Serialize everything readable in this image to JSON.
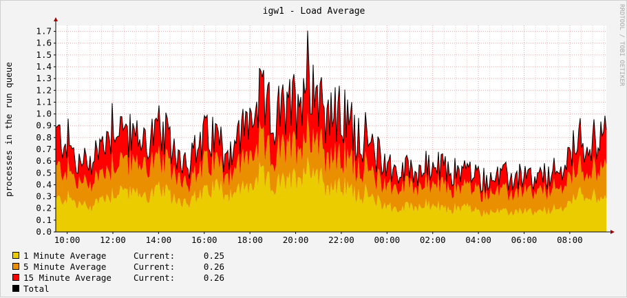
{
  "chart_data": {
    "type": "area",
    "title": "igw1 - Load Average",
    "ylabel": "processes in the run queue",
    "xlabel": "",
    "ylim": [
      0,
      1.75
    ],
    "yticks": [
      "0.0",
      "0.1",
      "0.2",
      "0.3",
      "0.4",
      "0.5",
      "0.6",
      "0.7",
      "0.8",
      "0.9",
      "1.0",
      "1.1",
      "1.2",
      "1.3",
      "1.4",
      "1.5",
      "1.6",
      "1.7"
    ],
    "xticks": [
      "10:00",
      "12:00",
      "14:00",
      "16:00",
      "18:00",
      "20:00",
      "22:00",
      "00:00",
      "02:00",
      "04:00",
      "06:00",
      "08:00"
    ],
    "x_range_hours": [
      9.5,
      33.6
    ],
    "grid": true,
    "watermark": "RRDTOOL / TOBI OETIKER",
    "x_hours": [
      9.5,
      10.0,
      10.5,
      11.0,
      11.5,
      12.0,
      12.5,
      13.0,
      13.5,
      14.0,
      14.5,
      15.0,
      15.5,
      16.0,
      16.5,
      17.0,
      17.5,
      18.0,
      18.5,
      19.0,
      19.5,
      20.0,
      20.5,
      21.0,
      21.5,
      22.0,
      22.5,
      23.0,
      23.5,
      24.0,
      24.5,
      25.0,
      25.5,
      26.0,
      26.5,
      27.0,
      27.5,
      28.0,
      28.5,
      29.0,
      29.5,
      30.0,
      30.5,
      31.0,
      31.5,
      32.0,
      32.5,
      33.0,
      33.6
    ],
    "series": [
      {
        "name": "1 Minute Average",
        "color": "#eacc00",
        "stack": true,
        "values": [
          0.25,
          0.28,
          0.22,
          0.2,
          0.27,
          0.31,
          0.35,
          0.29,
          0.3,
          0.33,
          0.29,
          0.25,
          0.26,
          0.31,
          0.38,
          0.31,
          0.33,
          0.37,
          0.45,
          0.36,
          0.4,
          0.43,
          0.54,
          0.48,
          0.34,
          0.37,
          0.33,
          0.31,
          0.25,
          0.22,
          0.17,
          0.22,
          0.2,
          0.22,
          0.18,
          0.19,
          0.21,
          0.15,
          0.17,
          0.15,
          0.16,
          0.17,
          0.15,
          0.17,
          0.18,
          0.23,
          0.32,
          0.3,
          0.25
        ]
      },
      {
        "name": "5 Minute Average",
        "color": "#ea8f00",
        "stack": true,
        "values": [
          0.25,
          0.22,
          0.17,
          0.2,
          0.2,
          0.25,
          0.25,
          0.23,
          0.26,
          0.23,
          0.22,
          0.19,
          0.16,
          0.23,
          0.19,
          0.16,
          0.2,
          0.25,
          0.25,
          0.23,
          0.26,
          0.25,
          0.29,
          0.29,
          0.25,
          0.22,
          0.24,
          0.21,
          0.18,
          0.18,
          0.16,
          0.19,
          0.16,
          0.17,
          0.18,
          0.16,
          0.17,
          0.16,
          0.16,
          0.16,
          0.15,
          0.16,
          0.15,
          0.16,
          0.16,
          0.2,
          0.2,
          0.21,
          0.26
        ]
      },
      {
        "name": "15 Minute Average",
        "color": "#ff0000",
        "stack": true,
        "values": [
          0.26,
          0.24,
          0.14,
          0.18,
          0.21,
          0.34,
          0.22,
          0.21,
          0.19,
          0.24,
          0.19,
          0.17,
          0.17,
          0.21,
          0.2,
          0.17,
          0.21,
          0.29,
          0.34,
          0.31,
          0.3,
          0.35,
          0.5,
          0.37,
          0.36,
          0.33,
          0.29,
          0.23,
          0.19,
          0.17,
          0.12,
          0.12,
          0.13,
          0.13,
          0.14,
          0.13,
          0.13,
          0.11,
          0.11,
          0.12,
          0.12,
          0.12,
          0.1,
          0.12,
          0.12,
          0.18,
          0.22,
          0.24,
          0.26
        ]
      },
      {
        "name": "Total",
        "color": "#000000",
        "stack": false,
        "values": [
          0.76,
          0.74,
          0.53,
          0.58,
          0.68,
          0.9,
          0.82,
          0.73,
          0.75,
          0.8,
          0.7,
          0.61,
          0.59,
          0.75,
          0.77,
          0.64,
          0.74,
          0.91,
          1.04,
          0.9,
          0.96,
          1.03,
          1.33,
          1.14,
          0.95,
          0.92,
          0.86,
          0.75,
          0.62,
          0.57,
          0.45,
          0.53,
          0.49,
          0.52,
          0.5,
          0.48,
          0.51,
          0.42,
          0.44,
          0.43,
          0.43,
          0.45,
          0.4,
          0.45,
          0.46,
          0.61,
          0.74,
          0.75,
          0.77
        ]
      }
    ]
  },
  "legend": [
    {
      "label": "1 Minute Average",
      "current_label": "Current:",
      "current": "0.25",
      "color": "#eacc00"
    },
    {
      "label": "5 Minute Average",
      "current_label": "Current:",
      "current": "0.26",
      "color": "#ea8f00"
    },
    {
      "label": "15 Minute Average",
      "current_label": "Current:",
      "current": "0.26",
      "color": "#ff0000"
    },
    {
      "label": "Total",
      "current_label": "",
      "current": "",
      "color": "#000000"
    }
  ]
}
